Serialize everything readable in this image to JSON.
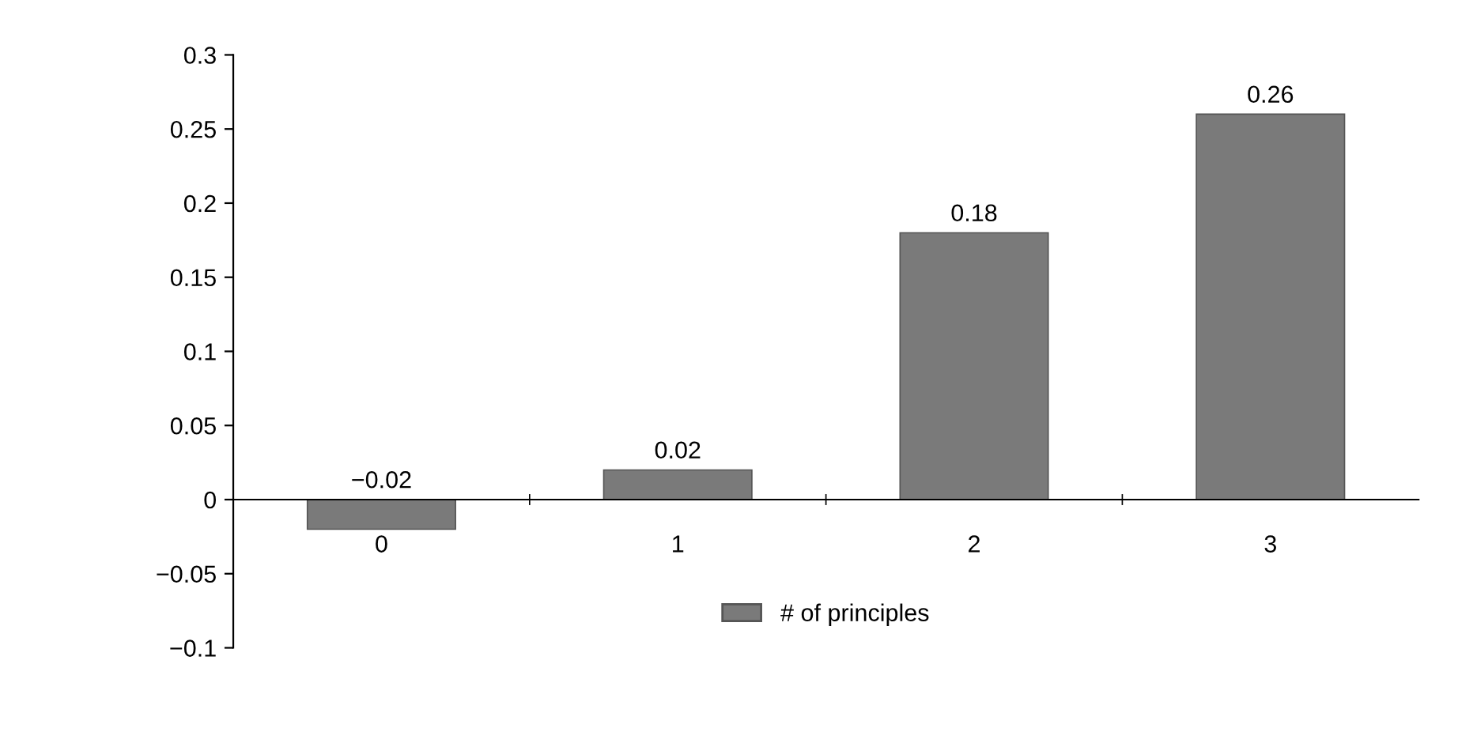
{
  "chart_data": {
    "type": "bar",
    "categories": [
      "0",
      "1",
      "2",
      "3"
    ],
    "series": [
      {
        "name": "# of principles",
        "color": "#7a7a7a",
        "values": [
          -0.02,
          0.02,
          0.18,
          0.26
        ],
        "value_labels": [
          "−0.02",
          "0.02",
          "0.18",
          "0.26"
        ]
      }
    ],
    "ylim": [
      -0.1,
      0.3
    ],
    "yticks": [
      {
        "value": -0.1,
        "label": "−0.1"
      },
      {
        "value": -0.05,
        "label": "−0.05"
      },
      0,
      0.05,
      0.1,
      0.15,
      0.2,
      0.25,
      0.3
    ],
    "legend": "bottom",
    "grid": false
  }
}
